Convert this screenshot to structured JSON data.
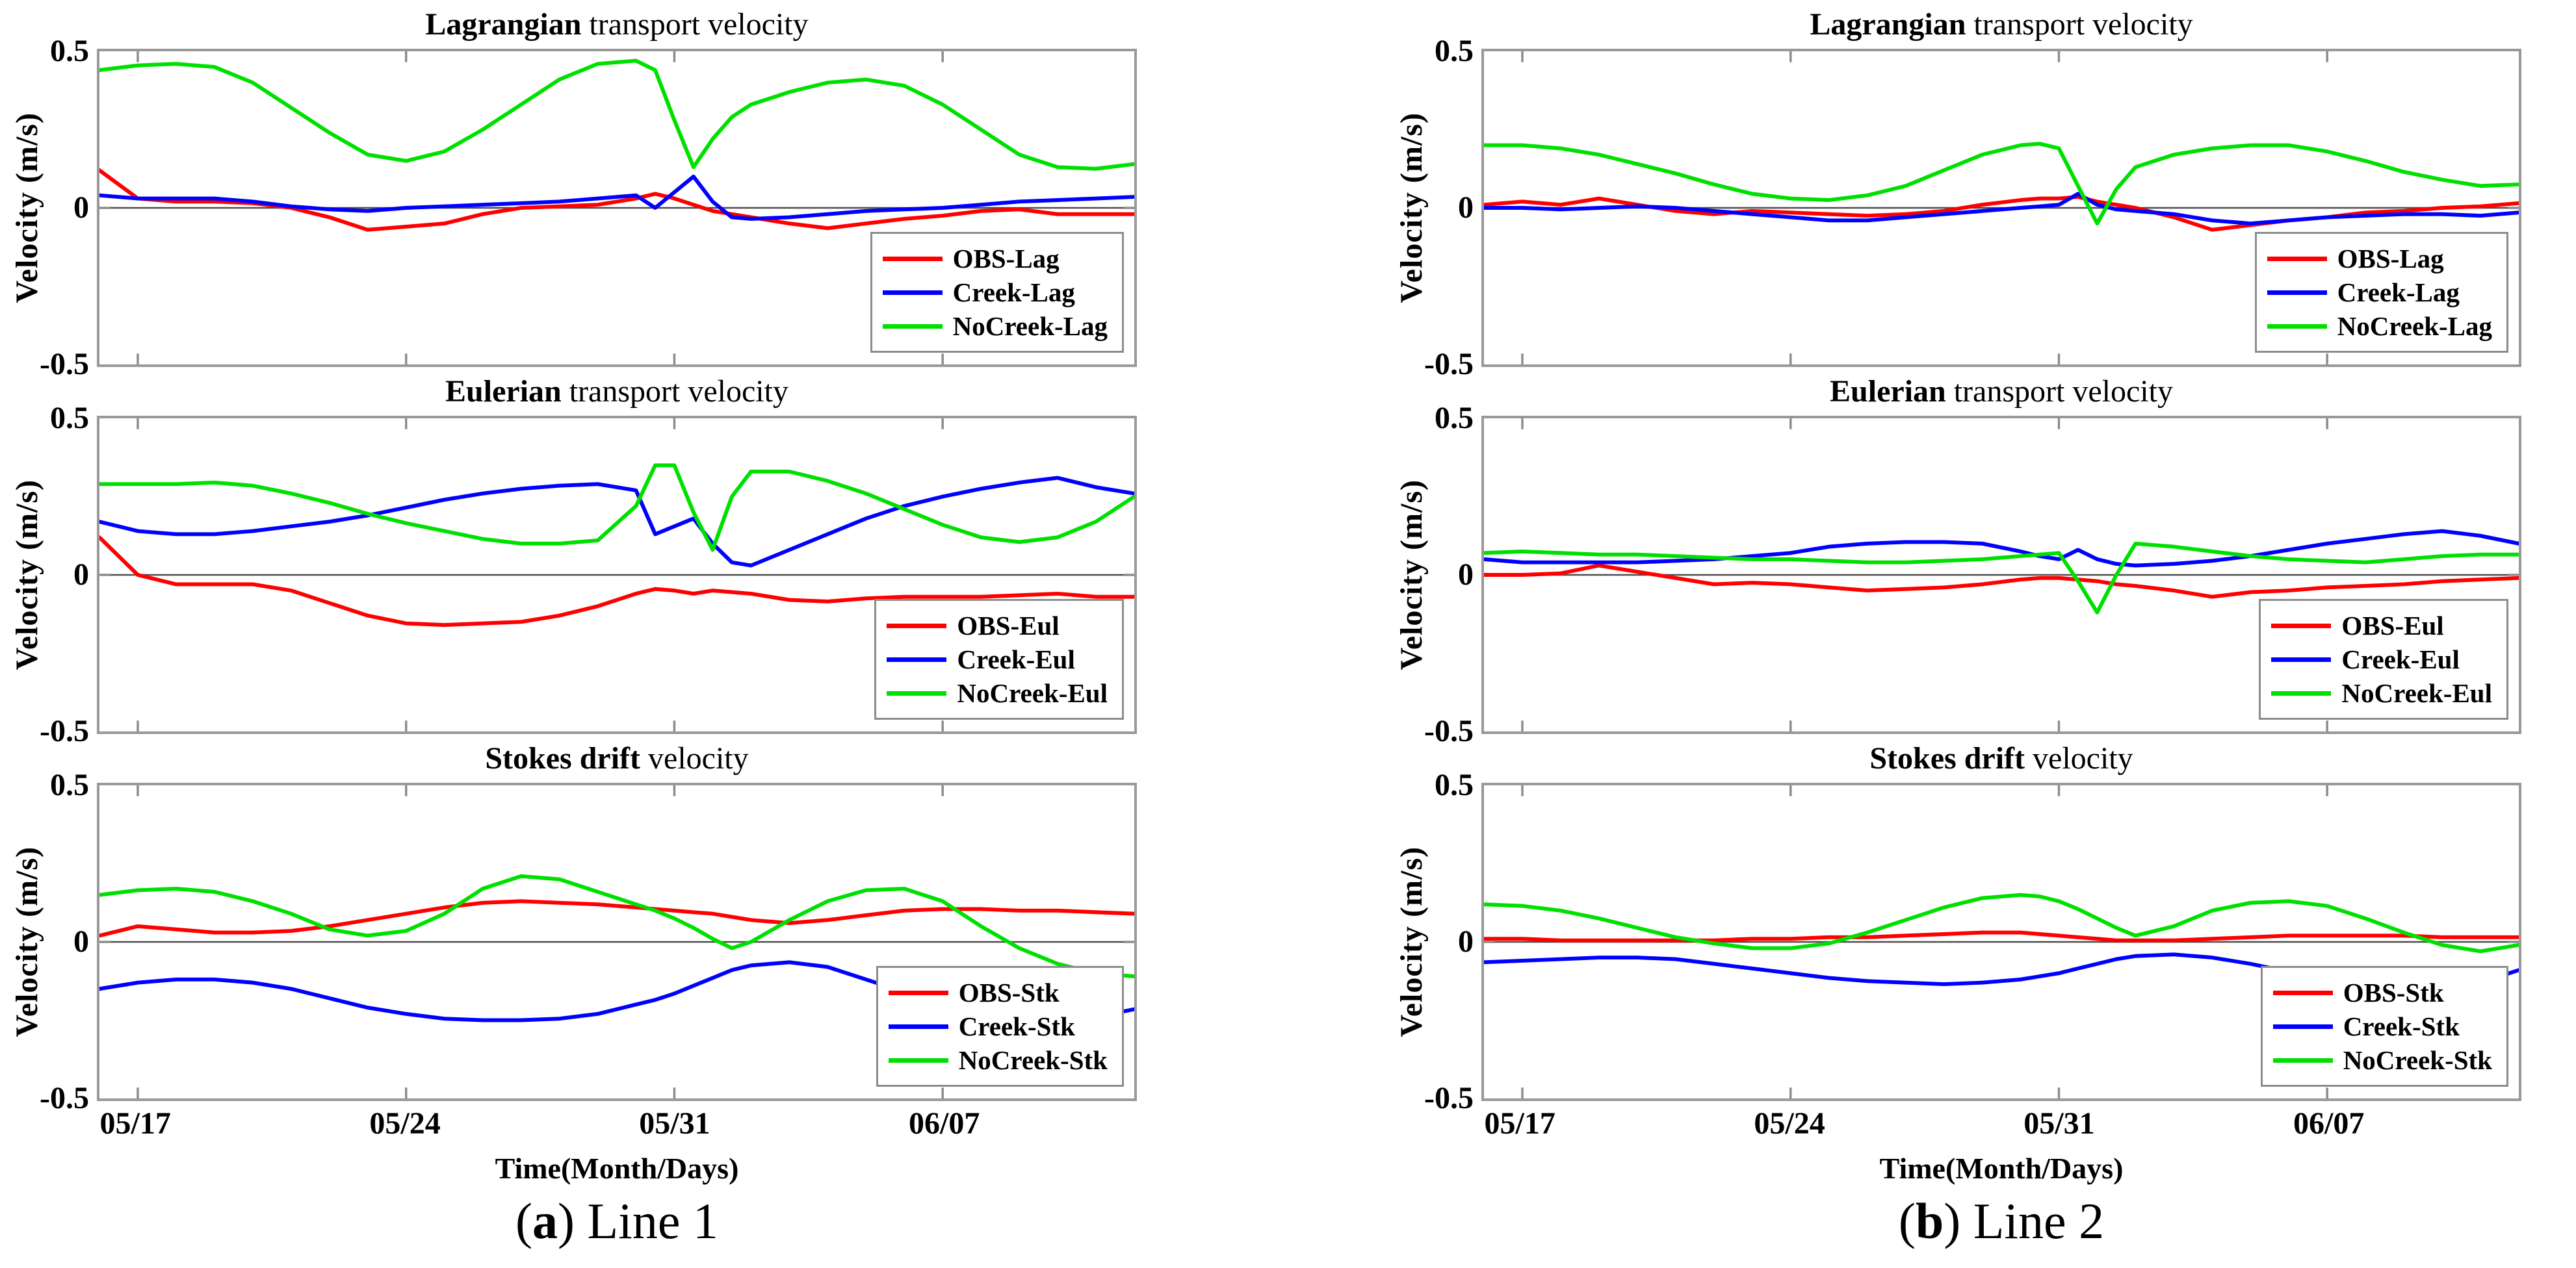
{
  "figure": {
    "background": "#ffffff",
    "styles": {
      "axis_color": "#999999",
      "tick_color": "#8c8c8c",
      "zero_line_color": "#4d4d4d",
      "text_color": "#000000",
      "obs_color": "#ff0000",
      "creek_color": "#0000ff",
      "nocreek_color": "#00e000"
    },
    "columns": [
      {
        "caption_pre": "(",
        "caption_bold": "a",
        "caption_post": ") Line 1",
        "xlabel": "Time(Month/Days)"
      },
      {
        "caption_pre": "(",
        "caption_bold": "b",
        "caption_post": ") Line 2",
        "xlabel": "Time(Month/Days)"
      }
    ]
  },
  "chart_data": [
    {
      "id": "line1-lagrangian",
      "type": "line",
      "title_bold": "Lagrangian",
      "title_rest": " transport velocity",
      "ylabel": "Velocity (m/s)",
      "ylim": [
        -0.5,
        0.5
      ],
      "y_tick_labels": [
        "0.5",
        "0",
        "-0.5"
      ],
      "x_range": [
        0,
        27
      ],
      "x_tick_days": [
        1,
        8,
        15,
        22
      ],
      "x_tick_labels": [
        "05/17",
        "05/24",
        "05/31",
        "06/07"
      ],
      "zero_line": true,
      "legend_position": "bottom-right",
      "grid": false,
      "x_days": [
        0,
        1,
        2,
        3,
        4,
        5,
        6,
        7,
        8,
        9,
        10,
        11,
        12,
        13,
        14,
        14.5,
        15,
        15.5,
        16,
        16.5,
        17,
        18,
        19,
        20,
        21,
        22,
        23,
        24,
        25,
        26,
        27
      ],
      "series": [
        {
          "name": "OBS-Lag",
          "color": "#ff0000",
          "values": [
            0.12,
            0.03,
            0.02,
            0.02,
            0.015,
            0,
            -0.03,
            -0.07,
            -0.06,
            -0.05,
            -0.02,
            0,
            0.005,
            0.01,
            0.03,
            0.045,
            0.03,
            0.01,
            -0.01,
            -0.02,
            -0.03,
            -0.05,
            -0.065,
            -0.05,
            -0.035,
            -0.025,
            -0.01,
            -0.005,
            -0.02,
            -0.02,
            -0.02
          ]
        },
        {
          "name": "Creek-Lag",
          "color": "#0000ff",
          "values": [
            0.04,
            0.03,
            0.03,
            0.03,
            0.02,
            0.005,
            -0.005,
            -0.01,
            0,
            0.005,
            0.01,
            0.015,
            0.02,
            0.03,
            0.04,
            0,
            0.05,
            0.1,
            0.02,
            -0.03,
            -0.035,
            -0.03,
            -0.02,
            -0.01,
            -0.005,
            0,
            0.01,
            0.02,
            0.025,
            0.03,
            0.035
          ]
        },
        {
          "name": "NoCreek-Lag",
          "color": "#00e000",
          "values": [
            0.44,
            0.455,
            0.46,
            0.45,
            0.4,
            0.32,
            0.24,
            0.17,
            0.15,
            0.18,
            0.25,
            0.33,
            0.41,
            0.46,
            0.47,
            0.44,
            0.28,
            0.13,
            0.22,
            0.29,
            0.33,
            0.37,
            0.4,
            0.41,
            0.39,
            0.33,
            0.25,
            0.17,
            0.13,
            0.125,
            0.14
          ]
        }
      ]
    },
    {
      "id": "line1-eulerian",
      "type": "line",
      "title_bold": "Eulerian",
      "title_rest": " transport velocity",
      "ylabel": "Velocity (m/s)",
      "ylim": [
        -0.5,
        0.5
      ],
      "y_tick_labels": [
        "0.5",
        "0",
        "-0.5"
      ],
      "x_range": [
        0,
        27
      ],
      "x_tick_days": [
        1,
        8,
        15,
        22
      ],
      "x_tick_labels": [
        "05/17",
        "05/24",
        "05/31",
        "06/07"
      ],
      "zero_line": true,
      "legend_position": "bottom-right",
      "grid": false,
      "x_days": [
        0,
        1,
        2,
        3,
        4,
        5,
        6,
        7,
        8,
        9,
        10,
        11,
        12,
        13,
        14,
        14.5,
        15,
        15.5,
        16,
        16.5,
        17,
        18,
        19,
        20,
        21,
        22,
        23,
        24,
        25,
        26,
        27
      ],
      "series": [
        {
          "name": "OBS-Eul",
          "color": "#ff0000",
          "values": [
            0.12,
            0,
            -0.03,
            -0.03,
            -0.03,
            -0.05,
            -0.09,
            -0.13,
            -0.155,
            -0.16,
            -0.155,
            -0.15,
            -0.13,
            -0.1,
            -0.06,
            -0.045,
            -0.05,
            -0.06,
            -0.05,
            -0.055,
            -0.06,
            -0.08,
            -0.085,
            -0.075,
            -0.07,
            -0.07,
            -0.07,
            -0.065,
            -0.06,
            -0.07,
            -0.07
          ]
        },
        {
          "name": "Creek-Eul",
          "color": "#0000ff",
          "values": [
            0.17,
            0.14,
            0.13,
            0.13,
            0.14,
            0.155,
            0.17,
            0.19,
            0.215,
            0.24,
            0.26,
            0.275,
            0.285,
            0.29,
            0.27,
            0.13,
            0.155,
            0.18,
            0.1,
            0.04,
            0.03,
            0.08,
            0.13,
            0.18,
            0.22,
            0.25,
            0.275,
            0.295,
            0.31,
            0.28,
            0.26
          ]
        },
        {
          "name": "NoCreek-Eul",
          "color": "#00e000",
          "values": [
            0.29,
            0.29,
            0.29,
            0.295,
            0.285,
            0.26,
            0.23,
            0.195,
            0.165,
            0.14,
            0.115,
            0.1,
            0.1,
            0.11,
            0.22,
            0.35,
            0.35,
            0.2,
            0.08,
            0.25,
            0.33,
            0.33,
            0.3,
            0.26,
            0.21,
            0.16,
            0.12,
            0.105,
            0.12,
            0.17,
            0.25
          ]
        }
      ]
    },
    {
      "id": "line1-stokes",
      "type": "line",
      "title_bold": "Stokes drift",
      "title_rest": " velocity",
      "ylabel": "Velocity (m/s)",
      "ylim": [
        -0.5,
        0.5
      ],
      "y_tick_labels": [
        "0.5",
        "0",
        "-0.5"
      ],
      "x_range": [
        0,
        27
      ],
      "x_tick_days": [
        1,
        8,
        15,
        22
      ],
      "x_tick_labels": [
        "05/17",
        "05/24",
        "05/31",
        "06/07"
      ],
      "zero_line": true,
      "legend_position": "bottom-right",
      "grid": false,
      "x_days": [
        0,
        1,
        2,
        3,
        4,
        5,
        6,
        7,
        8,
        9,
        10,
        11,
        12,
        13,
        14,
        14.5,
        15,
        15.5,
        16,
        16.5,
        17,
        18,
        19,
        20,
        21,
        22,
        23,
        24,
        25,
        26,
        27
      ],
      "series": [
        {
          "name": "OBS-Stk",
          "color": "#ff0000",
          "values": [
            0.02,
            0.05,
            0.04,
            0.03,
            0.03,
            0.035,
            0.05,
            0.07,
            0.09,
            0.11,
            0.125,
            0.13,
            0.125,
            0.12,
            0.11,
            0.105,
            0.1,
            0.095,
            0.09,
            0.08,
            0.07,
            0.06,
            0.07,
            0.085,
            0.1,
            0.105,
            0.105,
            0.1,
            0.1,
            0.095,
            0.09
          ]
        },
        {
          "name": "Creek-Stk",
          "color": "#0000ff",
          "values": [
            -0.15,
            -0.13,
            -0.12,
            -0.12,
            -0.13,
            -0.15,
            -0.18,
            -0.21,
            -0.23,
            -0.245,
            -0.25,
            -0.25,
            -0.245,
            -0.23,
            -0.2,
            -0.185,
            -0.165,
            -0.14,
            -0.115,
            -0.09,
            -0.075,
            -0.065,
            -0.08,
            -0.12,
            -0.16,
            -0.2,
            -0.23,
            -0.25,
            -0.255,
            -0.24,
            -0.215
          ]
        },
        {
          "name": "NoCreek-Stk",
          "color": "#00e000",
          "values": [
            0.15,
            0.165,
            0.17,
            0.16,
            0.13,
            0.09,
            0.04,
            0.02,
            0.035,
            0.09,
            0.17,
            0.21,
            0.2,
            0.16,
            0.12,
            0.1,
            0.075,
            0.045,
            0.01,
            -0.02,
            0,
            0.07,
            0.13,
            0.165,
            0.17,
            0.13,
            0.05,
            -0.02,
            -0.07,
            -0.1,
            -0.11
          ]
        }
      ]
    },
    {
      "id": "line2-lagrangian",
      "type": "line",
      "title_bold": "Lagrangian",
      "title_rest": " transport velocity",
      "ylabel": "Velocity (m/s)",
      "ylim": [
        -0.5,
        0.5
      ],
      "y_tick_labels": [
        "0.5",
        "0",
        "-0.5"
      ],
      "x_range": [
        0,
        27
      ],
      "x_tick_days": [
        1,
        8,
        15,
        22
      ],
      "x_tick_labels": [
        "05/17",
        "05/24",
        "05/31",
        "06/07"
      ],
      "zero_line": true,
      "legend_position": "bottom-right",
      "grid": false,
      "x_days": [
        0,
        1,
        2,
        3,
        4,
        5,
        6,
        7,
        8,
        9,
        10,
        11,
        12,
        13,
        14,
        14.5,
        15,
        15.5,
        16,
        16.5,
        17,
        18,
        19,
        20,
        21,
        22,
        23,
        24,
        25,
        26,
        27
      ],
      "series": [
        {
          "name": "OBS-Lag",
          "color": "#ff0000",
          "values": [
            0.01,
            0.02,
            0.01,
            0.03,
            0.01,
            -0.01,
            -0.02,
            -0.01,
            -0.015,
            -0.02,
            -0.025,
            -0.02,
            -0.01,
            0.01,
            0.025,
            0.03,
            0.03,
            0.035,
            0.02,
            0.01,
            0,
            -0.03,
            -0.07,
            -0.055,
            -0.04,
            -0.03,
            -0.015,
            -0.01,
            0,
            0.005,
            0.015
          ]
        },
        {
          "name": "Creek-Lag",
          "color": "#0000ff",
          "values": [
            0,
            0,
            -0.005,
            0,
            0.005,
            0,
            -0.01,
            -0.02,
            -0.03,
            -0.04,
            -0.04,
            -0.03,
            -0.02,
            -0.01,
            0,
            0.005,
            0.01,
            0.045,
            0.01,
            -0.005,
            -0.01,
            -0.02,
            -0.04,
            -0.05,
            -0.04,
            -0.03,
            -0.025,
            -0.02,
            -0.02,
            -0.025,
            -0.015
          ]
        },
        {
          "name": "NoCreek-Lag",
          "color": "#00e000",
          "values": [
            0.2,
            0.2,
            0.19,
            0.17,
            0.14,
            0.11,
            0.075,
            0.045,
            0.03,
            0.025,
            0.04,
            0.07,
            0.12,
            0.17,
            0.2,
            0.205,
            0.19,
            0.07,
            -0.05,
            0.06,
            0.13,
            0.17,
            0.19,
            0.2,
            0.2,
            0.18,
            0.15,
            0.115,
            0.09,
            0.07,
            0.075
          ]
        }
      ]
    },
    {
      "id": "line2-eulerian",
      "type": "line",
      "title_bold": "Eulerian",
      "title_rest": " transport velocity",
      "ylabel": "Velocity (m/s)",
      "ylim": [
        -0.5,
        0.5
      ],
      "y_tick_labels": [
        "0.5",
        "0",
        "-0.5"
      ],
      "x_range": [
        0,
        27
      ],
      "x_tick_days": [
        1,
        8,
        15,
        22
      ],
      "x_tick_labels": [
        "05/17",
        "05/24",
        "05/31",
        "06/07"
      ],
      "zero_line": true,
      "legend_position": "bottom-right",
      "grid": false,
      "x_days": [
        0,
        1,
        2,
        3,
        4,
        5,
        6,
        7,
        8,
        9,
        10,
        11,
        12,
        13,
        14,
        14.5,
        15,
        15.5,
        16,
        16.5,
        17,
        18,
        19,
        20,
        21,
        22,
        23,
        24,
        25,
        26,
        27
      ],
      "series": [
        {
          "name": "OBS-Eul",
          "color": "#ff0000",
          "values": [
            0,
            0,
            0.005,
            0.03,
            0.01,
            -0.01,
            -0.03,
            -0.025,
            -0.03,
            -0.04,
            -0.05,
            -0.045,
            -0.04,
            -0.03,
            -0.015,
            -0.01,
            -0.01,
            -0.015,
            -0.02,
            -0.03,
            -0.035,
            -0.05,
            -0.07,
            -0.055,
            -0.05,
            -0.04,
            -0.035,
            -0.03,
            -0.02,
            -0.015,
            -0.01
          ]
        },
        {
          "name": "Creek-Eul",
          "color": "#0000ff",
          "values": [
            0.05,
            0.04,
            0.04,
            0.04,
            0.04,
            0.045,
            0.05,
            0.06,
            0.07,
            0.09,
            0.1,
            0.105,
            0.105,
            0.1,
            0.075,
            0.06,
            0.05,
            0.08,
            0.05,
            0.035,
            0.03,
            0.035,
            0.045,
            0.06,
            0.08,
            0.1,
            0.115,
            0.13,
            0.14,
            0.125,
            0.1
          ]
        },
        {
          "name": "NoCreek-Eul",
          "color": "#00e000",
          "values": [
            0.07,
            0.075,
            0.07,
            0.065,
            0.065,
            0.06,
            0.055,
            0.05,
            0.05,
            0.045,
            0.04,
            0.04,
            0.045,
            0.05,
            0.06,
            0.065,
            0.07,
            -0.02,
            -0.12,
            0,
            0.1,
            0.09,
            0.075,
            0.06,
            0.05,
            0.045,
            0.04,
            0.05,
            0.06,
            0.065,
            0.065
          ]
        }
      ]
    },
    {
      "id": "line2-stokes",
      "type": "line",
      "title_bold": "Stokes drift",
      "title_rest": " velocity",
      "ylabel": "Velocity (m/s)",
      "ylim": [
        -0.5,
        0.5
      ],
      "y_tick_labels": [
        "0.5",
        "0",
        "-0.5"
      ],
      "x_range": [
        0,
        27
      ],
      "x_tick_days": [
        1,
        8,
        15,
        22
      ],
      "x_tick_labels": [
        "05/17",
        "05/24",
        "05/31",
        "06/07"
      ],
      "zero_line": true,
      "legend_position": "bottom-right",
      "grid": false,
      "x_days": [
        0,
        1,
        2,
        3,
        4,
        5,
        6,
        7,
        8,
        9,
        10,
        11,
        12,
        13,
        14,
        14.5,
        15,
        15.5,
        16,
        16.5,
        17,
        18,
        19,
        20,
        21,
        22,
        23,
        24,
        25,
        26,
        27
      ],
      "series": [
        {
          "name": "OBS-Stk",
          "color": "#ff0000",
          "values": [
            0.01,
            0.01,
            0.005,
            0.005,
            0.005,
            0.005,
            0.005,
            0.01,
            0.01,
            0.015,
            0.015,
            0.02,
            0.025,
            0.03,
            0.03,
            0.025,
            0.02,
            0.015,
            0.01,
            0.005,
            0.005,
            0.005,
            0.01,
            0.015,
            0.02,
            0.02,
            0.02,
            0.02,
            0.015,
            0.015,
            0.015
          ]
        },
        {
          "name": "Creek-Stk",
          "color": "#0000ff",
          "values": [
            -0.065,
            -0.06,
            -0.055,
            -0.05,
            -0.05,
            -0.055,
            -0.07,
            -0.085,
            -0.1,
            -0.115,
            -0.125,
            -0.13,
            -0.135,
            -0.13,
            -0.12,
            -0.11,
            -0.1,
            -0.085,
            -0.07,
            -0.055,
            -0.045,
            -0.04,
            -0.05,
            -0.07,
            -0.095,
            -0.115,
            -0.135,
            -0.148,
            -0.15,
            -0.13,
            -0.09
          ]
        },
        {
          "name": "NoCreek-Stk",
          "color": "#00e000",
          "values": [
            0.12,
            0.115,
            0.1,
            0.075,
            0.045,
            0.015,
            -0.005,
            -0.02,
            -0.02,
            -0.005,
            0.03,
            0.07,
            0.11,
            0.14,
            0.15,
            0.145,
            0.13,
            0.105,
            0.075,
            0.045,
            0.02,
            0.05,
            0.1,
            0.125,
            0.13,
            0.115,
            0.075,
            0.03,
            -0.01,
            -0.03,
            -0.01
          ]
        }
      ]
    }
  ]
}
